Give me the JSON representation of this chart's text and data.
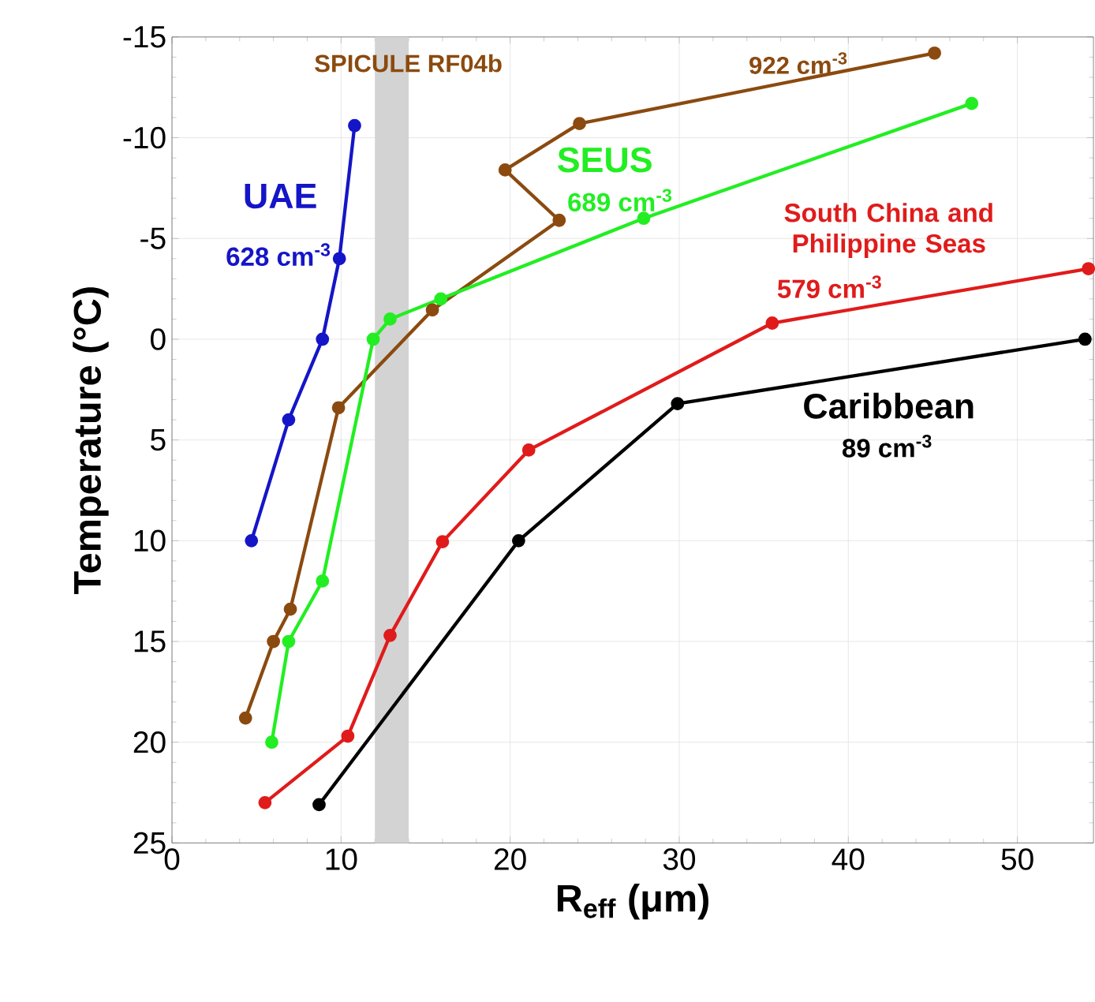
{
  "chart_data": {
    "type": "line",
    "xlabel": "R$_{eff}$ (μm)",
    "ylabel": "Temperature (°C)",
    "xlim": [
      0,
      54.5
    ],
    "ylim": [
      25,
      -15
    ],
    "xticks": [
      0,
      10,
      20,
      30,
      40,
      50
    ],
    "yticks": [
      -15,
      -10,
      -5,
      0,
      5,
      10,
      15,
      20,
      25
    ],
    "grid": true,
    "legend": false,
    "marker": "circle",
    "line_style": "solid",
    "bands": [
      {
        "axis": "x",
        "from": 12,
        "to": 14,
        "color": "#d3d3d3"
      }
    ],
    "series": [
      {
        "name": "UAE",
        "color": "#1515c8",
        "x": [
          4.7,
          6.9,
          8.9,
          9.9,
          10.8
        ],
        "values": [
          10.0,
          4.0,
          0,
          -4.0,
          -10.6
        ]
      },
      {
        "name": "SPICULE RF04b",
        "color": "#8b4a0f",
        "x": [
          4.35,
          6.0,
          7.0,
          9.85,
          15.4,
          22.9,
          19.7,
          24.1,
          45.1
        ],
        "values": [
          18.8,
          15.0,
          13.4,
          3.4,
          -1.45,
          -5.9,
          -8.4,
          -10.7,
          -14.2
        ]
      },
      {
        "name": "SEUS",
        "color": "#22ee22",
        "x": [
          5.9,
          6.9,
          8.9,
          11.9,
          12.9,
          15.9,
          27.9,
          47.3
        ],
        "values": [
          20.0,
          15.0,
          12.0,
          0,
          -1.0,
          -2.0,
          -6.0,
          -11.7
        ]
      },
      {
        "name": "South China and Philippine Seas",
        "color": "#e01b1b",
        "x": [
          5.5,
          10.4,
          12.9,
          16.0,
          21.1,
          35.5,
          54.2
        ],
        "values": [
          23.0,
          19.7,
          14.7,
          10.05,
          5.5,
          -0.8,
          -3.5
        ]
      },
      {
        "name": "Caribbean",
        "color": "#000000",
        "x": [
          8.7,
          20.5,
          29.9,
          54.0
        ],
        "values": [
          23.1,
          10.0,
          3.2,
          0
        ]
      }
    ],
    "annotations": [
      "628 cm$^{-3}$",
      "922 cm$^{-3}$",
      "689 cm$^{-3}$",
      "579 cm$^{-3}$",
      "89 cm$^{-3}$"
    ]
  }
}
